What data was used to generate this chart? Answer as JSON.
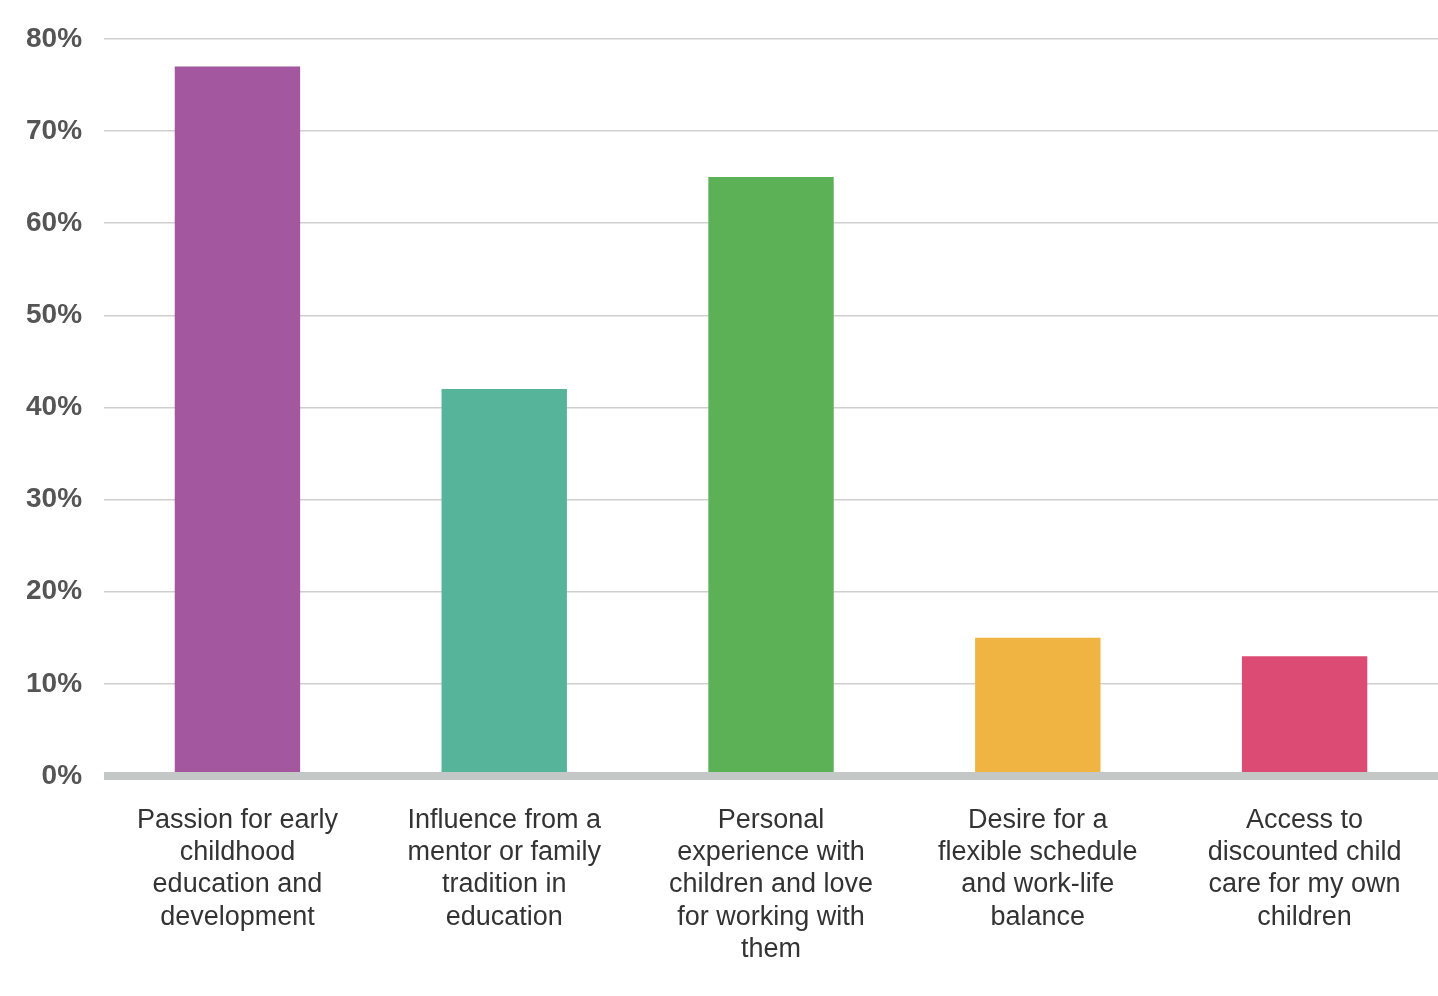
{
  "chart_data": {
    "type": "bar",
    "categories": [
      "Passion for early childhood education and development",
      "Influence from a mentor or family tradition in education",
      "Personal experience with children and love for working with them",
      "Desire for a flexible schedule and work-life balance",
      "Access to discounted child care for my own children"
    ],
    "values": [
      77,
      42,
      65,
      15,
      13
    ],
    "colors": [
      "#a2579e",
      "#56b49a",
      "#5cb157",
      "#f0b443",
      "#dc4b73"
    ],
    "ylim": [
      0,
      80
    ],
    "yticks": [
      {
        "value": 0,
        "label": "0%"
      },
      {
        "value": 10,
        "label": "10%"
      },
      {
        "value": 20,
        "label": "20%"
      },
      {
        "value": 30,
        "label": "30%"
      },
      {
        "value": 40,
        "label": "40%"
      },
      {
        "value": 50,
        "label": "50%"
      },
      {
        "value": 60,
        "label": "60%"
      },
      {
        "value": 70,
        "label": "70%"
      },
      {
        "value": 80,
        "label": "80%"
      }
    ],
    "grid": "y",
    "legend": false
  }
}
